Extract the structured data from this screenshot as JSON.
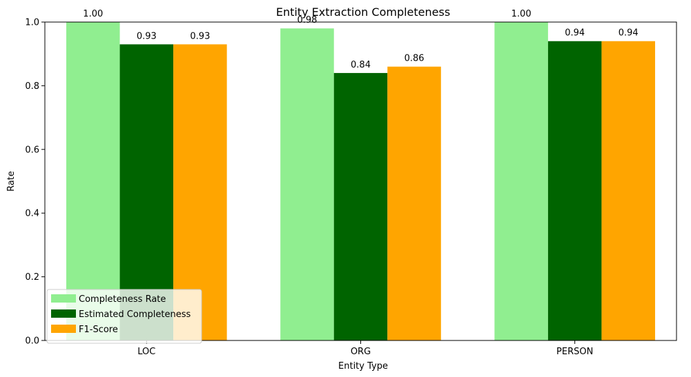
{
  "chart_data": {
    "type": "bar",
    "title": "Entity Extraction Completeness",
    "xlabel": "Entity Type",
    "ylabel": "Rate",
    "categories": [
      "LOC",
      "ORG",
      "PERSON"
    ],
    "ylim": [
      0,
      1.0
    ],
    "yticks": [
      "0.0",
      "0.2",
      "0.4",
      "0.6",
      "0.8",
      "1.0"
    ],
    "grid": false,
    "legend_position": "lower-left",
    "series": [
      {
        "name": "Completeness Rate",
        "color": "#90ee90",
        "values": [
          1.0,
          0.98,
          1.0
        ],
        "labels": [
          "1.00",
          "0.98",
          "1.00"
        ]
      },
      {
        "name": "Estimated Completeness",
        "color": "#006400",
        "values": [
          0.93,
          0.84,
          0.94
        ],
        "labels": [
          "0.93",
          "0.84",
          "0.94"
        ]
      },
      {
        "name": "F1-Score",
        "color": "#ffa500",
        "values": [
          0.93,
          0.86,
          0.94
        ],
        "labels": [
          "0.93",
          "0.86",
          "0.94"
        ]
      }
    ]
  }
}
